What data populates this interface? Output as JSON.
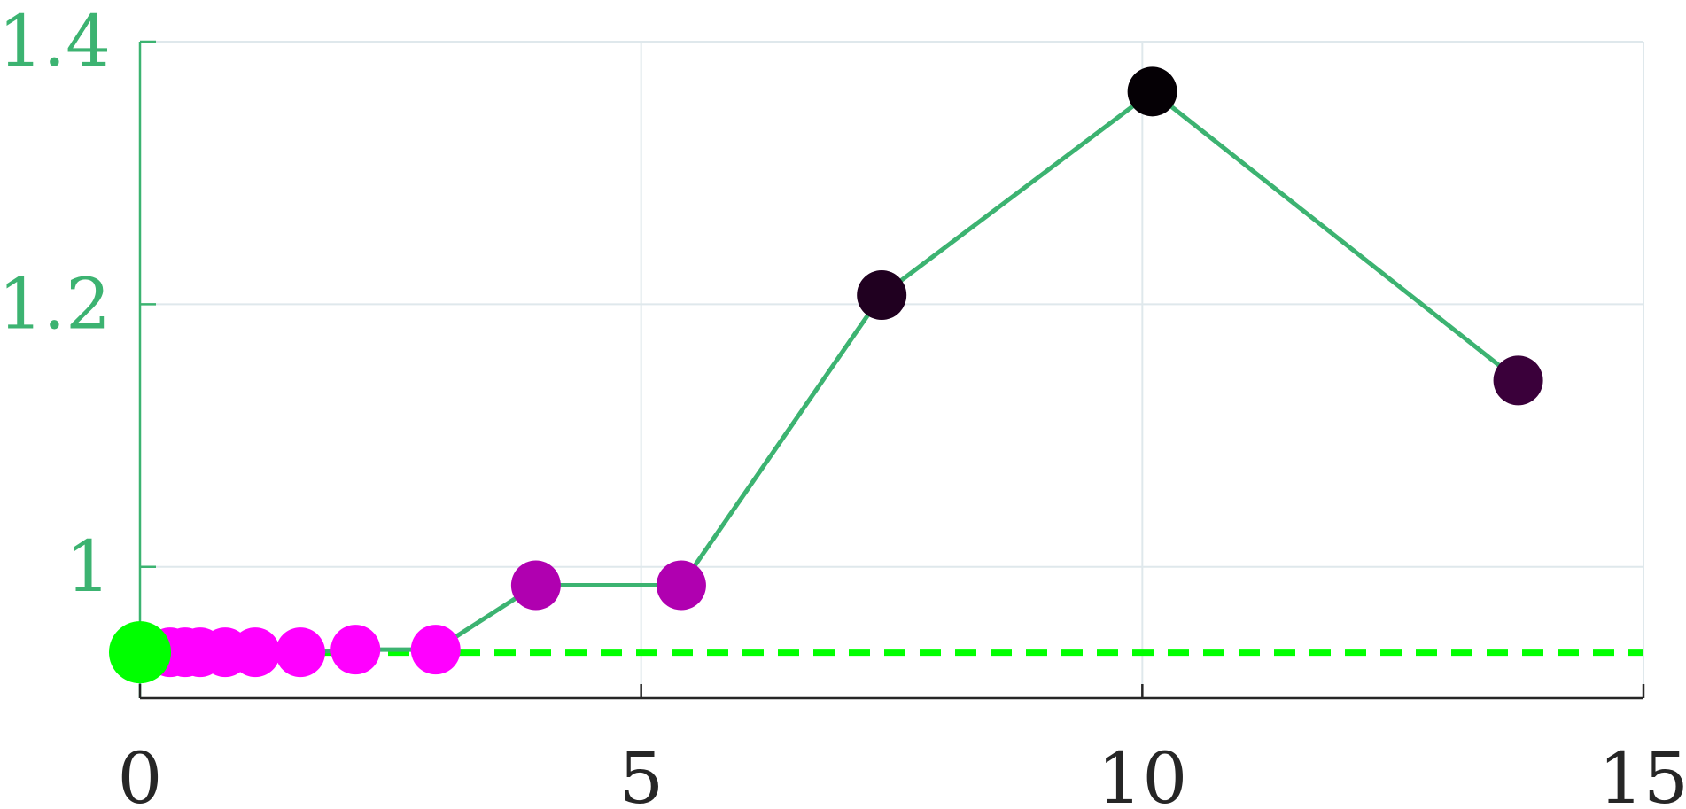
{
  "colors": {
    "background": "#ffffff",
    "grid": "#dfe8ec",
    "y_axis": "#3cb371",
    "x_axis": "#262626",
    "series_line": "#3cb371",
    "reference_line": "#00ff00",
    "start_marker": "#00ff00"
  },
  "chart_data": {
    "type": "line",
    "title": "",
    "xlabel": "",
    "ylabel": "",
    "xlim": [
      0,
      15
    ],
    "ylim": [
      0.9,
      1.4
    ],
    "x_ticks": [
      0,
      5,
      10,
      15
    ],
    "x_tick_labels": [
      "0",
      "5",
      "10",
      "15"
    ],
    "y_ticks": [
      1.0,
      1.2,
      1.4
    ],
    "y_tick_labels": [
      "1",
      "1.2",
      "1.4"
    ],
    "grid": true,
    "series": [
      {
        "x": [
          0,
          0.3,
          0.45,
          0.6,
          0.85,
          1.15,
          1.6,
          2.15,
          2.95,
          3.95,
          5.4,
          7.4,
          10.1,
          13.75
        ],
        "y": [
          0.935,
          0.935,
          0.935,
          0.935,
          0.935,
          0.935,
          0.935,
          0.937,
          0.937,
          0.986,
          0.986,
          1.207,
          1.362,
          1.142
        ],
        "marker_colors": [
          "#00ff00",
          "#ff00ff",
          "#ff00ff",
          "#ff00ff",
          "#ff00ff",
          "#ff00ff",
          "#ff00ff",
          "#ff00ff",
          "#ff00ff",
          "#b000b0",
          "#b000b0",
          "#200020",
          "#050005",
          "#3a003a"
        ]
      }
    ],
    "reference_line": {
      "y": 0.935,
      "style": "dashed"
    }
  }
}
